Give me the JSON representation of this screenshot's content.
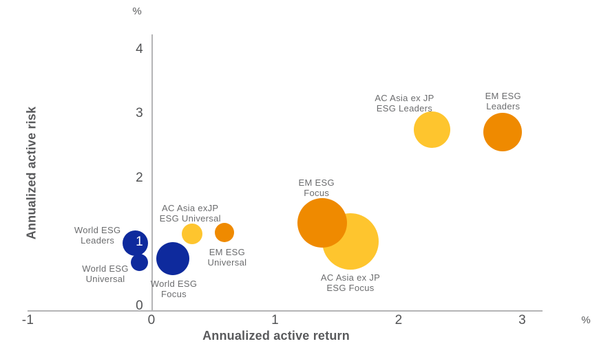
{
  "chart_data": {
    "type": "scatter",
    "xlabel": "Annualized active return",
    "ylabel": "Annualized active risk",
    "x_unit": "%",
    "y_unit": "%",
    "xlim": [
      -1,
      3.17
    ],
    "ylim": [
      0,
      4.3
    ],
    "grid": false,
    "legend": false,
    "x_ticks": [
      {
        "v": -1,
        "label": "-1"
      },
      {
        "v": 0,
        "label": "0"
      },
      {
        "v": 1,
        "label": "1"
      },
      {
        "v": 2,
        "label": "2"
      },
      {
        "v": 3,
        "label": "3"
      }
    ],
    "y_ticks": [
      {
        "v": 0,
        "label": "0"
      },
      {
        "v": 1,
        "label": "1",
        "on_bubble": true
      },
      {
        "v": 2,
        "label": "2"
      },
      {
        "v": 3,
        "label": "3"
      },
      {
        "v": 4,
        "label": "4"
      }
    ],
    "colors": {
      "blue": "#0e2a9d",
      "orange": "#ef8a00",
      "yellow": "#fec52e"
    },
    "series": [
      {
        "name": "AC Asia ex JP ESG Focus",
        "label_lines": [
          "AC Asia ex JP",
          "ESG Focus"
        ],
        "x": 1.61,
        "y": 1.01,
        "r": 41,
        "color_key": "yellow",
        "label_dx": 0,
        "label_dy": 60
      },
      {
        "name": "EM ESG Focus",
        "label_lines": [
          "EM ESG",
          "Focus"
        ],
        "x": 1.38,
        "y": 1.3,
        "r": 36,
        "color_key": "orange",
        "label_dx": -8,
        "label_dy": -51
      },
      {
        "name": "World ESG Focus",
        "label_lines": [
          "World ESG",
          "Focus"
        ],
        "x": 0.17,
        "y": 0.74,
        "r": 24,
        "color_key": "blue",
        "label_dx": 2,
        "label_dy": 44
      },
      {
        "name": "World ESG Leaders",
        "label_lines": [
          "World ESG",
          "Leaders"
        ],
        "x": -0.13,
        "y": 0.98,
        "r": 18.5,
        "color_key": "blue",
        "label_dx": -55,
        "label_dy": -12
      },
      {
        "name": "World ESG Universal",
        "label_lines": [
          "World ESG",
          "Universal"
        ],
        "x": -0.1,
        "y": 0.68,
        "r": 12.5,
        "color_key": "blue",
        "label_dx": -49,
        "label_dy": 16
      },
      {
        "name": "AC Asia exJP ESG Universal",
        "label_lines": [
          "AC Asia exJP",
          "ESG Universal"
        ],
        "x": 0.33,
        "y": 1.13,
        "r": 15,
        "color_key": "yellow",
        "label_dx": -3,
        "label_dy": -30
      },
      {
        "name": "EM ESG Universal",
        "label_lines": [
          "EM ESG",
          "Universal"
        ],
        "x": 0.59,
        "y": 1.15,
        "r": 14,
        "color_key": "orange",
        "label_dx": 4,
        "label_dy": 36
      },
      {
        "name": "AC Asia ex JP ESG Leaders",
        "label_lines": [
          "AC Asia ex JP",
          "ESG Leaders"
        ],
        "x": 2.27,
        "y": 2.75,
        "r": 26.5,
        "color_key": "yellow",
        "label_dx": -40,
        "label_dy": -39
      },
      {
        "name": "EM ESG Leaders",
        "label_lines": [
          "EM ESG",
          "Leaders"
        ],
        "x": 2.84,
        "y": 2.71,
        "r": 28,
        "color_key": "orange",
        "label_dx": 1,
        "label_dy": -45
      }
    ]
  }
}
